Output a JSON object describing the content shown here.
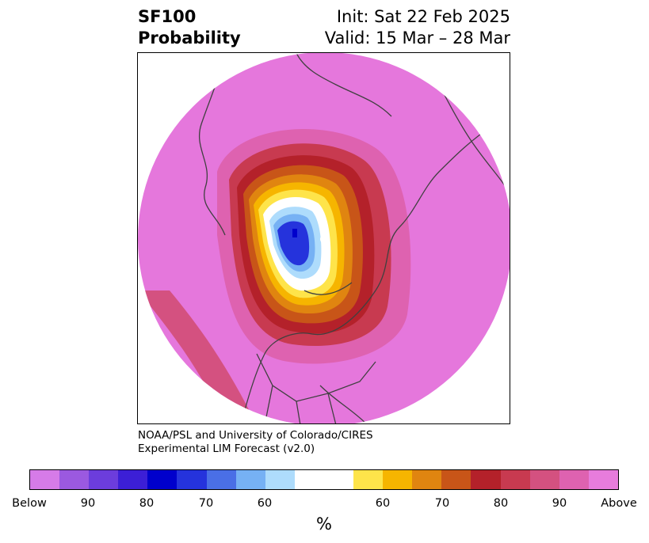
{
  "title": {
    "left_line1": "SF100",
    "left_line2": "Probability",
    "right_line1": "Init: Sat 22 Feb 2025",
    "right_line2": "Valid: 15 Mar – 28 Mar"
  },
  "credit": {
    "line1": "NOAA/PSL and University of Colorado/CIRES",
    "line2": "Experimental LIM Forecast (v2.0)"
  },
  "colorbar": {
    "unit_label": "%",
    "colors": [
      "#d67be8",
      "#9b59e0",
      "#6c3ddc",
      "#3c1fd6",
      "#0000cc",
      "#2533dc",
      "#4a6fe6",
      "#76b1f4",
      "#aedcfc",
      "#ffffff",
      "#ffffff",
      "#fee44a",
      "#f6b500",
      "#e08510",
      "#c85518",
      "#b4212a",
      "#c83a50",
      "#d45180",
      "#de62b0",
      "#e77cdc"
    ],
    "labels": [
      {
        "text": "Below"
      },
      {
        "text": "90"
      },
      {
        "text": "80"
      },
      {
        "text": "70"
      },
      {
        "text": "60"
      },
      {
        "text": "60"
      },
      {
        "text": "70"
      },
      {
        "text": "80"
      },
      {
        "text": "90"
      },
      {
        "text": "Above"
      }
    ]
  },
  "map": {
    "projection": "north-polar-stereographic",
    "background_color": "#e577dc",
    "coastline_color": "#404040"
  }
}
